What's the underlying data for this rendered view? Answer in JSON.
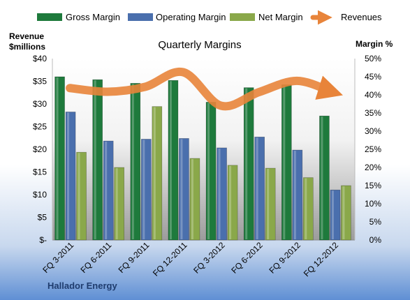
{
  "chart_data": {
    "type": "bar",
    "title": "Quarterly Margins",
    "company": "Hallador Energy",
    "left_axis": {
      "label_line1": "Revenue",
      "label_line2": "$millions",
      "ylim": [
        0,
        40
      ],
      "ticks": [
        "$-",
        "$5",
        "$10",
        "$15",
        "$20",
        "$25",
        "$30",
        "$35",
        "$40"
      ]
    },
    "right_axis": {
      "label": "Margin %",
      "ylim": [
        0,
        50
      ],
      "ticks": [
        "0%",
        "5%",
        "10%",
        "15%",
        "20%",
        "25%",
        "30%",
        "35%",
        "40%",
        "45%",
        "50%"
      ]
    },
    "categories": [
      "FQ 3-2011",
      "FQ 6-2011",
      "FQ 9-2011",
      "FQ 12-2011",
      "FQ 3-2012",
      "FQ 6-2012",
      "FQ 9-2012",
      "FQ 12-2012"
    ],
    "series": [
      {
        "name": "Gross Margin",
        "type": "bar",
        "axis": "right",
        "color": "#1e7a3c",
        "values": [
          45,
          44.2,
          43.2,
          44,
          38,
          42,
          42.8,
          34.2
        ]
      },
      {
        "name": "Operating Margin",
        "type": "bar",
        "axis": "right",
        "color": "#4a6fad",
        "values": [
          35.3,
          27.3,
          27.8,
          28,
          25.4,
          28.4,
          24.8,
          13.8
        ]
      },
      {
        "name": "Net Margin",
        "type": "bar",
        "axis": "right",
        "color": "#8aa84a",
        "values": [
          24.2,
          20,
          36.8,
          22.5,
          20.6,
          19.8,
          17.2,
          15
        ]
      },
      {
        "name": "Revenues",
        "type": "line",
        "axis": "left",
        "color": "#e8843a",
        "values": [
          33.5,
          32.7,
          33.8,
          37,
          29.6,
          32.6,
          35.1,
          32.7
        ]
      }
    ],
    "legend": "top",
    "grid": false
  }
}
